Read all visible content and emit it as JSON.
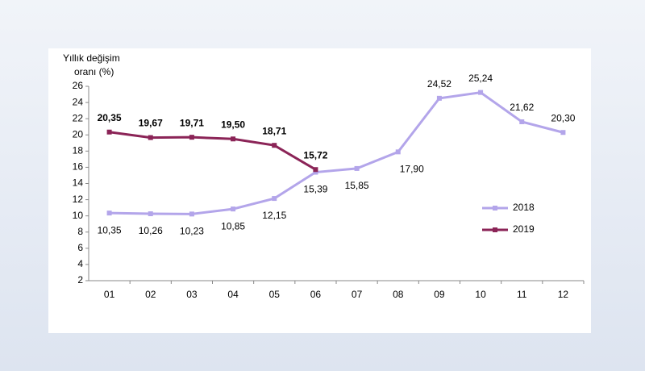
{
  "chart_data": {
    "type": "line",
    "ylabel": [
      "Yıllık  değişim",
      "oranı (%)"
    ],
    "categories": [
      "01",
      "02",
      "03",
      "04",
      "05",
      "06",
      "07",
      "08",
      "09",
      "10",
      "11",
      "12"
    ],
    "series": [
      {
        "name": "2018",
        "color": "#b3a5ea",
        "values": [
          10.35,
          10.26,
          10.23,
          10.85,
          12.15,
          15.39,
          15.85,
          17.9,
          24.52,
          25.24,
          21.62,
          20.3
        ],
        "value_labels": [
          "10,35",
          "10,26",
          "10,23",
          "10,85",
          "12,15",
          "15,39",
          "15,85",
          "17,90",
          "24,52",
          "25,24",
          "21,62",
          "20,30"
        ]
      },
      {
        "name": "2019",
        "color": "#8b2457",
        "values": [
          20.35,
          19.67,
          19.71,
          19.5,
          18.71,
          15.72,
          null,
          null,
          null,
          null,
          null,
          null
        ],
        "value_labels": [
          "20,35",
          "19,67",
          "19,71",
          "19,50",
          "18,71",
          "15,72",
          null,
          null,
          null,
          null,
          null,
          null
        ]
      }
    ],
    "ylim": [
      2,
      26
    ],
    "yticks": [
      2,
      4,
      6,
      8,
      10,
      12,
      14,
      16,
      18,
      20,
      22,
      24,
      26
    ],
    "grid": false,
    "legend": "right"
  }
}
